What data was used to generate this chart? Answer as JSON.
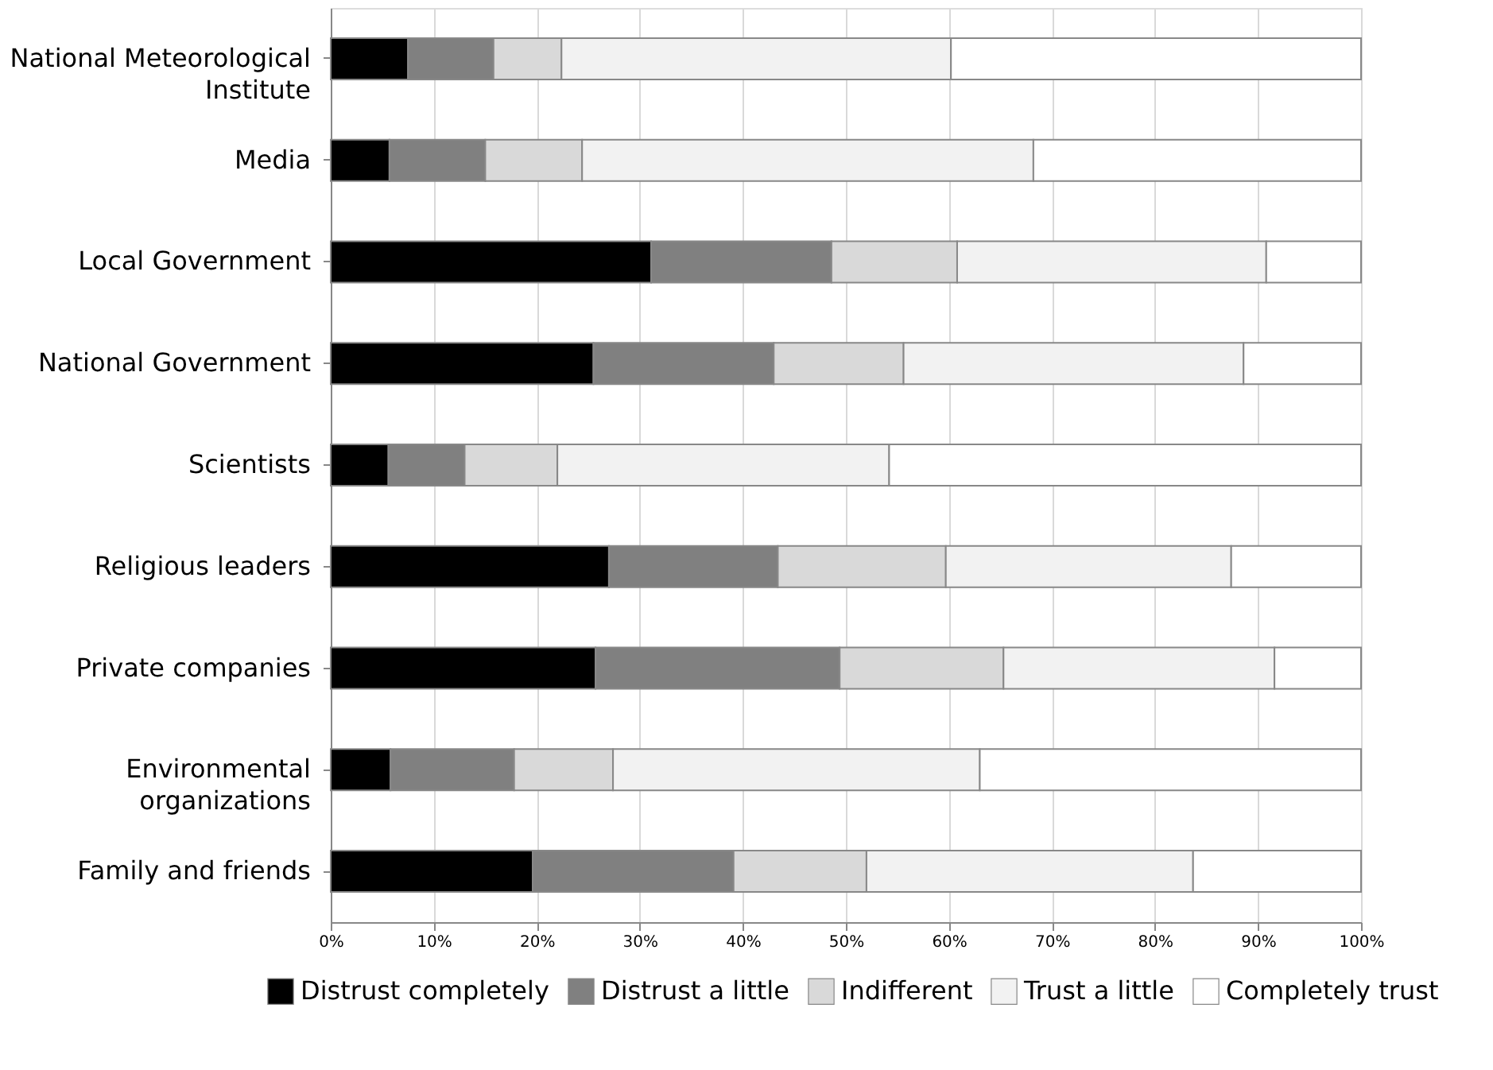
{
  "chart_data": {
    "type": "bar",
    "orientation": "horizontal",
    "stacked": true,
    "categories": [
      "National Meteorological\nInstitute",
      "Media",
      "Local Government",
      "National Government",
      "Scientists",
      "Religious leaders",
      "Private companies",
      "Environmental\norganizations",
      "Family and friends"
    ],
    "series": [
      {
        "name": "Distrust completely",
        "color": "#000000",
        "values": [
          7.5,
          5.7,
          31.1,
          25.5,
          5.6,
          27,
          25.7,
          5.8,
          19.6
        ]
      },
      {
        "name": "Distrust a little",
        "color": "#808080",
        "values": [
          8.3,
          9.3,
          17.5,
          17.5,
          7.4,
          16.4,
          23.7,
          12,
          19.5
        ]
      },
      {
        "name": "Indifferent",
        "color": "#d9d9d9",
        "values": [
          6.6,
          9.4,
          12.2,
          12.6,
          9,
          16.3,
          15.9,
          9.6,
          12.9
        ]
      },
      {
        "name": "Trust a little",
        "color": "#f2f2f2",
        "values": [
          37.8,
          43.8,
          30,
          33,
          32.2,
          27.7,
          26.3,
          35.6,
          31.7
        ]
      },
      {
        "name": "Completely trust",
        "color": "#ffffff",
        "values": [
          39.8,
          31.8,
          9.2,
          11.4,
          45.8,
          12.6,
          8.4,
          37,
          16.3
        ]
      }
    ],
    "xlim": [
      0,
      100
    ],
    "xticks": [
      {
        "value": 0,
        "label": "0%"
      },
      {
        "value": 10,
        "label": "10%"
      },
      {
        "value": 20,
        "label": "20%"
      },
      {
        "value": 30,
        "label": "30%"
      },
      {
        "value": 40,
        "label": "40%"
      },
      {
        "value": 50,
        "label": "50%"
      },
      {
        "value": 60,
        "label": "60%"
      },
      {
        "value": 70,
        "label": "70%"
      },
      {
        "value": 80,
        "label": "80%"
      },
      {
        "value": 90,
        "label": "90%"
      },
      {
        "value": 100,
        "label": "100%"
      }
    ],
    "grid": "x",
    "legend": "bottom"
  }
}
